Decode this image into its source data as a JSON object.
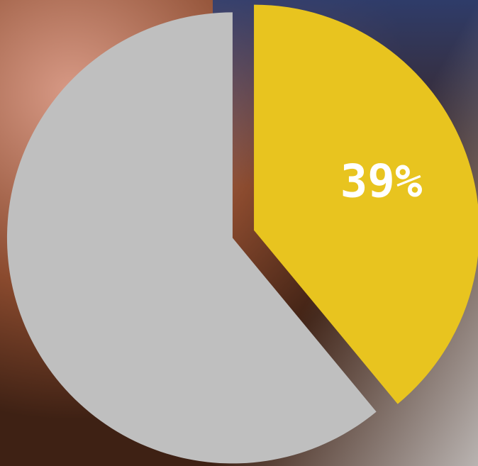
{
  "chart_data": {
    "type": "pie",
    "values": [
      39,
      61
    ],
    "value_labels": [
      "39%",
      null
    ],
    "colors": [
      "#e8c41f",
      "#bfbfbf"
    ]
  }
}
